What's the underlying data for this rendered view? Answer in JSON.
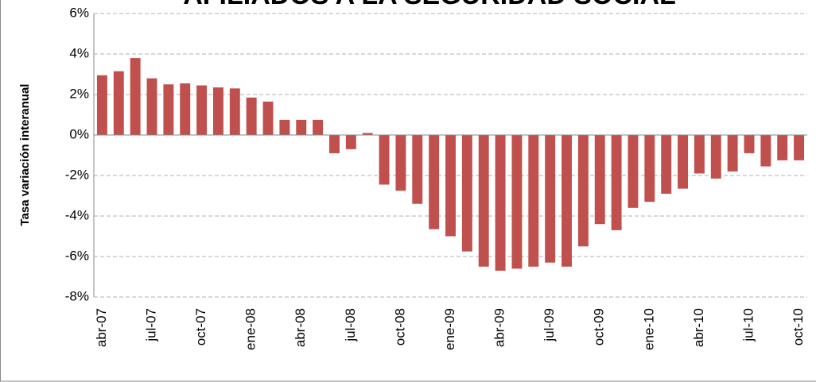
{
  "chart_data": {
    "type": "bar",
    "title": "AFILIADOS A LA SEGURIDAD SOCIAL",
    "y_label": "Tasa variación  interanual",
    "categories": [
      "abr-07",
      null,
      null,
      "jul-07",
      null,
      null,
      "oct-07",
      null,
      null,
      "ene-08",
      null,
      null,
      "abr-08",
      null,
      null,
      "jul-08",
      null,
      null,
      "oct-08",
      null,
      null,
      "ene-09",
      null,
      null,
      "abr-09",
      null,
      null,
      "jul-09",
      null,
      null,
      "oct-09",
      null,
      null,
      "ene-10",
      null,
      null,
      "abr-10",
      null,
      null,
      "jul-10",
      null,
      null,
      "oct-10"
    ],
    "values": [
      2.95,
      3.15,
      3.8,
      2.8,
      2.5,
      2.55,
      2.45,
      2.35,
      2.3,
      1.85,
      1.65,
      0.75,
      0.75,
      0.75,
      -0.9,
      -0.7,
      0.1,
      -2.45,
      -2.75,
      -3.4,
      -4.65,
      -5.0,
      -5.75,
      -6.5,
      -6.7,
      -6.6,
      -6.5,
      -6.3,
      -6.5,
      -5.5,
      -4.4,
      -4.7,
      -3.6,
      -3.3,
      -2.9,
      -2.65,
      -1.9,
      -2.15,
      -1.8,
      -0.9,
      -1.55,
      -1.25,
      -1.25
    ],
    "color": "#c0504d",
    "ylim": [
      -8,
      6
    ],
    "yticks": [
      {
        "value": -8,
        "label": "-8%"
      },
      {
        "value": -6,
        "label": "-6%"
      },
      {
        "value": -4,
        "label": "-4%"
      },
      {
        "value": -2,
        "label": "-2%"
      },
      {
        "value": 0,
        "label": "0%"
      },
      {
        "value": 2,
        "label": "2%"
      },
      {
        "value": 4,
        "label": "4%"
      },
      {
        "value": 6,
        "label": "6%"
      }
    ],
    "grid": true
  }
}
